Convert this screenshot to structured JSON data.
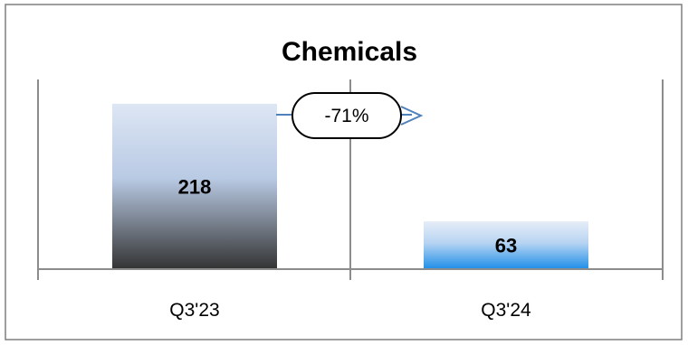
{
  "chart_data": {
    "type": "bar",
    "title": "Chemicals",
    "categories": [
      "Q3'23",
      "Q3'24"
    ],
    "values": [
      218,
      63
    ],
    "ylim": [
      0,
      250
    ],
    "change_label": "-71%",
    "grid": false,
    "legend": "none",
    "colors": {
      "bar1_top": "#c9d7ee",
      "bar1_bottom": "#3a3a3a",
      "bar2_top": "#dfe8f5",
      "bar2_bottom": "#1e90e6",
      "arrow": "#4f81bd",
      "axis": "#8c8c8c",
      "frame": "#7f7f7f"
    }
  }
}
